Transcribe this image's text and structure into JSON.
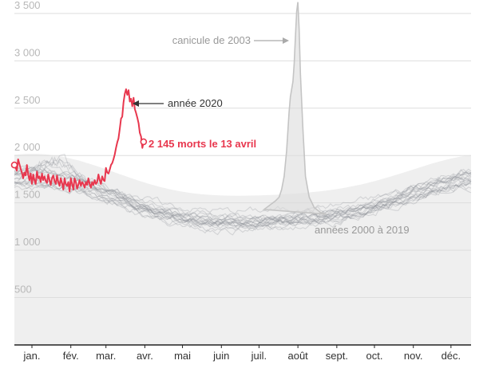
{
  "chart_data": {
    "type": "line",
    "title": "",
    "xlabel": "",
    "ylabel": "",
    "ylim": [
      0,
      3600
    ],
    "y_ticks": [
      {
        "value": 500,
        "label": "500"
      },
      {
        "value": 1000,
        "label": "1 000"
      },
      {
        "value": 1500,
        "label": "1 500"
      },
      {
        "value": 2000,
        "label": "2 000"
      },
      {
        "value": 2500,
        "label": "2 500"
      },
      {
        "value": 3000,
        "label": "3 000"
      },
      {
        "value": 3500,
        "label": "3 500"
      }
    ],
    "x_days": 365,
    "x_ticks": [
      {
        "day": 15,
        "label": "jan."
      },
      {
        "day": 46,
        "label": "fév."
      },
      {
        "day": 74,
        "label": "mar."
      },
      {
        "day": 105,
        "label": "avr."
      },
      {
        "day": 135,
        "label": "mai"
      },
      {
        "day": 166,
        "label": "juin"
      },
      {
        "day": 196,
        "label": "juil."
      },
      {
        "day": 227,
        "label": "août"
      },
      {
        "day": 258,
        "label": "sept."
      },
      {
        "day": 288,
        "label": "oct."
      },
      {
        "day": 319,
        "label": "nov."
      },
      {
        "day": 349,
        "label": "déc."
      }
    ],
    "grid": true,
    "colors": {
      "y2020": "#e8374e",
      "past_years": "#8a8d93",
      "heatwave": "#c4c4c4",
      "band": "#efefef",
      "grid": "#dddddd"
    },
    "annotations": {
      "heatwave": "canicule de 2003",
      "y2020": "année 2020",
      "latest": "2 145 morts le 13 avril",
      "past": "années 2000 à 2019"
    },
    "series": [
      {
        "name": "année 2020",
        "x": [
          1,
          2,
          3,
          4,
          5,
          6,
          7,
          8,
          9,
          10,
          11,
          12,
          13,
          14,
          15,
          16,
          17,
          18,
          19,
          20,
          21,
          22,
          23,
          24,
          25,
          26,
          27,
          28,
          29,
          30,
          31,
          32,
          33,
          34,
          35,
          36,
          37,
          38,
          39,
          40,
          41,
          42,
          43,
          44,
          45,
          46,
          47,
          48,
          49,
          50,
          51,
          52,
          53,
          54,
          55,
          56,
          57,
          58,
          59,
          60,
          61,
          62,
          63,
          64,
          65,
          66,
          67,
          68,
          69,
          70,
          71,
          72,
          73,
          74,
          75,
          76,
          77,
          78,
          79,
          80,
          81,
          82,
          83,
          84,
          85,
          86,
          87,
          88,
          89,
          90,
          91,
          92,
          93,
          94,
          95,
          96,
          97,
          98,
          99,
          100,
          101,
          102,
          103,
          104
        ],
        "y": [
          1900,
          1870,
          1840,
          1960,
          1910,
          1860,
          1820,
          1760,
          1820,
          1790,
          1900,
          1800,
          1740,
          1810,
          1700,
          1800,
          1740,
          1700,
          1830,
          1760,
          1780,
          1720,
          1810,
          1740,
          1780,
          1730,
          1710,
          1800,
          1740,
          1690,
          1760,
          1790,
          1730,
          1700,
          1790,
          1720,
          1680,
          1760,
          1710,
          1640,
          1760,
          1700,
          1680,
          1720,
          1620,
          1760,
          1700,
          1640,
          1760,
          1720,
          1650,
          1690,
          1740,
          1680,
          1720,
          1700,
          1660,
          1720,
          1690,
          1760,
          1700,
          1660,
          1720,
          1690,
          1740,
          1700,
          1720,
          1800,
          1740,
          1700,
          1780,
          1740,
          1730,
          1870,
          1820,
          1810,
          1850,
          1900,
          1920,
          1960,
          2010,
          2080,
          2140,
          2180,
          2280,
          2390,
          2410,
          2560,
          2650,
          2700,
          2640,
          2690,
          2570,
          2600,
          2520,
          2610,
          2490,
          2450,
          2400,
          2340,
          2240,
          2200,
          2080,
          2145
        ]
      },
      {
        "name": "canicule de 2003",
        "x": [
          200,
          205,
          209,
          212,
          214,
          216,
          218,
          220,
          221,
          222,
          223,
          224,
          225,
          226,
          227,
          228,
          229,
          231,
          233,
          236,
          240,
          245,
          250
        ],
        "y": [
          1430,
          1480,
          1520,
          1560,
          1640,
          1780,
          2050,
          2460,
          2620,
          2700,
          2780,
          2960,
          3250,
          3520,
          3620,
          3330,
          2860,
          2280,
          1780,
          1560,
          1450,
          1400,
          1380
        ]
      }
    ]
  }
}
